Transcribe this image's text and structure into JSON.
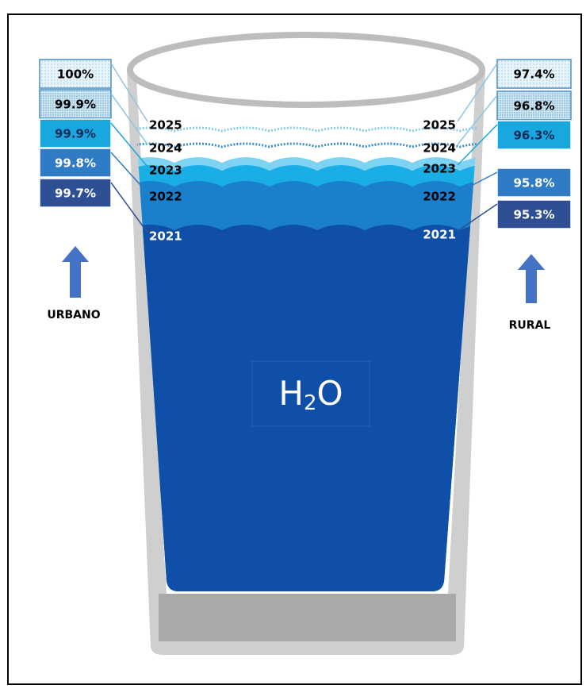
{
  "urban": {
    "label": "URBANO",
    "levels": [
      {
        "year": "2025",
        "value": "100%"
      },
      {
        "year": "2024",
        "value": "99.9%"
      },
      {
        "year": "2023",
        "value": "99.9%"
      },
      {
        "year": "2022",
        "value": "99.8%"
      },
      {
        "year": "2021",
        "value": "99.7%"
      }
    ]
  },
  "rural": {
    "label": "RURAL",
    "levels": [
      {
        "year": "2025",
        "value": "97.4%"
      },
      {
        "year": "2024",
        "value": "96.8%"
      },
      {
        "year": "2023",
        "value": "96.3%"
      },
      {
        "year": "2022",
        "value": "95.8%"
      },
      {
        "year": "2021",
        "value": "95.3%"
      }
    ]
  },
  "center_label": {
    "main": "H",
    "sub": "2",
    "end": "O"
  }
}
